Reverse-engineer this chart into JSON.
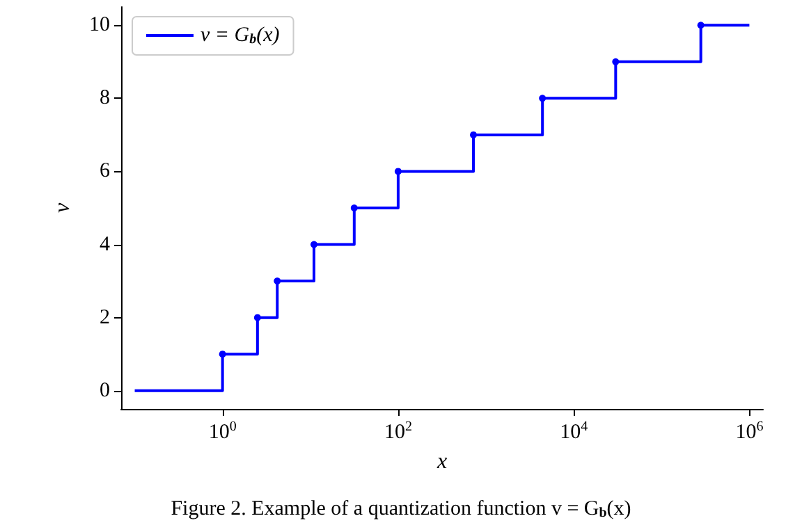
{
  "chart_data": {
    "type": "step",
    "xlabel": "x",
    "ylabel": "v",
    "x": [
      0.1,
      1,
      2.5,
      4.2,
      11,
      31.6,
      100,
      720,
      4400,
      30000,
      280000,
      1000000
    ],
    "series": [
      {
        "name": "v = G$_{b}$(x)",
        "color": "#0000ff",
        "values": [
          0,
          1,
          2,
          3,
          4,
          5,
          6,
          7,
          8,
          9,
          10,
          10
        ]
      }
    ],
    "log": "x",
    "xlim": [
      0.07,
      1430000
    ],
    "xticks": [
      {
        "value": 1,
        "label": "10$^{0}$"
      },
      {
        "value": 100,
        "label": "10$^{2}$"
      },
      {
        "value": 10000,
        "label": "10$^{4}$"
      },
      {
        "value": 1000000,
        "label": "10$^{6}$"
      }
    ],
    "ylim": [
      -0.5,
      10.5
    ],
    "yticks": [
      0,
      2,
      4,
      6,
      8,
      10
    ],
    "grid": false,
    "legend": "top left",
    "marker": "circle",
    "line_style": "solid",
    "annotations": [
      "Figure 2. Example of a quantization function v = G$_{b}$(x)"
    ]
  }
}
